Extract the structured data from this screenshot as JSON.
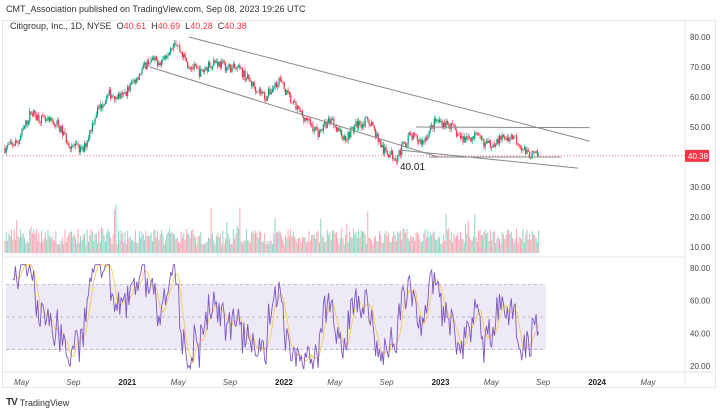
{
  "header": {
    "published": "CMT_Association published on TradingView.com, Sep 08, 2023 19:26 UTC"
  },
  "legend": {
    "symbol": "Citigroup, Inc., 1D, NYSE",
    "o_label": "O",
    "o": "40.61",
    "h_label": "H",
    "h": "40.69",
    "l_label": "L",
    "l": "40.28",
    "c_label": "C",
    "c": "40.38"
  },
  "footer": {
    "brand": "TradingView"
  },
  "colors": {
    "up": "#089981",
    "down": "#f23645",
    "rsi": "#7e57c2",
    "rsi_ma": "#f5c842",
    "band": "#ede9f7",
    "trend": "#888888"
  },
  "chart_data": {
    "type": "candlestick",
    "title": "Citigroup, Inc., 1D, NYSE",
    "last_price": "40.38",
    "annotation": "40.01",
    "price_axis": {
      "ticks": [
        "80.00",
        "70.00",
        "60.00",
        "50.00",
        "30.00",
        "20.00",
        "10.00"
      ],
      "range": [
        7,
        85
      ]
    },
    "rsi_axis": {
      "ticks": [
        "80.00",
        "60.00",
        "40.00",
        "20.00"
      ],
      "range": [
        15,
        85
      ],
      "band": [
        30,
        70
      ],
      "mid": 50
    },
    "time_axis": [
      {
        "label": "May",
        "bold": false
      },
      {
        "label": "Sep",
        "bold": false
      },
      {
        "label": "2021",
        "bold": true
      },
      {
        "label": "May",
        "bold": false
      },
      {
        "label": "Sep",
        "bold": false
      },
      {
        "label": "2022",
        "bold": true
      },
      {
        "label": "May",
        "bold": false
      },
      {
        "label": "Sep",
        "bold": false
      },
      {
        "label": "2023",
        "bold": true
      },
      {
        "label": "May",
        "bold": false
      },
      {
        "label": "Sep",
        "bold": false
      },
      {
        "label": "2024",
        "bold": true
      },
      {
        "label": "May",
        "bold": false
      }
    ],
    "monthly_close": {
      "start": "2020-04",
      "values": [
        43,
        45,
        55,
        52,
        51,
        44,
        42,
        55,
        61,
        60,
        66,
        72,
        72,
        79,
        71,
        68,
        72,
        70,
        69,
        64,
        60,
        66,
        58,
        53,
        48,
        53,
        46,
        51,
        52,
        42,
        40,
        47,
        45,
        52,
        51,
        46,
        47,
        44,
        46,
        47,
        41,
        40.4
      ]
    },
    "trendlines": [
      {
        "name": "upper-channel",
        "from": [
          13.1,
          80
        ],
        "to": [
          43.8,
          45.3
        ]
      },
      {
        "name": "lower-channel",
        "from": [
          10.1,
          70
        ],
        "to": [
          32.2,
          40
        ]
      },
      {
        "name": "lower-wedge",
        "from": [
          29.3,
          42.3
        ],
        "to": [
          42.9,
          36.3
        ]
      },
      {
        "name": "upper-range",
        "from": [
          30.5,
          50
        ],
        "to": [
          43.8,
          49.8
        ]
      },
      {
        "name": "support",
        "from": [
          31.5,
          40
        ],
        "to": [
          41.6,
          40
        ]
      }
    ]
  }
}
